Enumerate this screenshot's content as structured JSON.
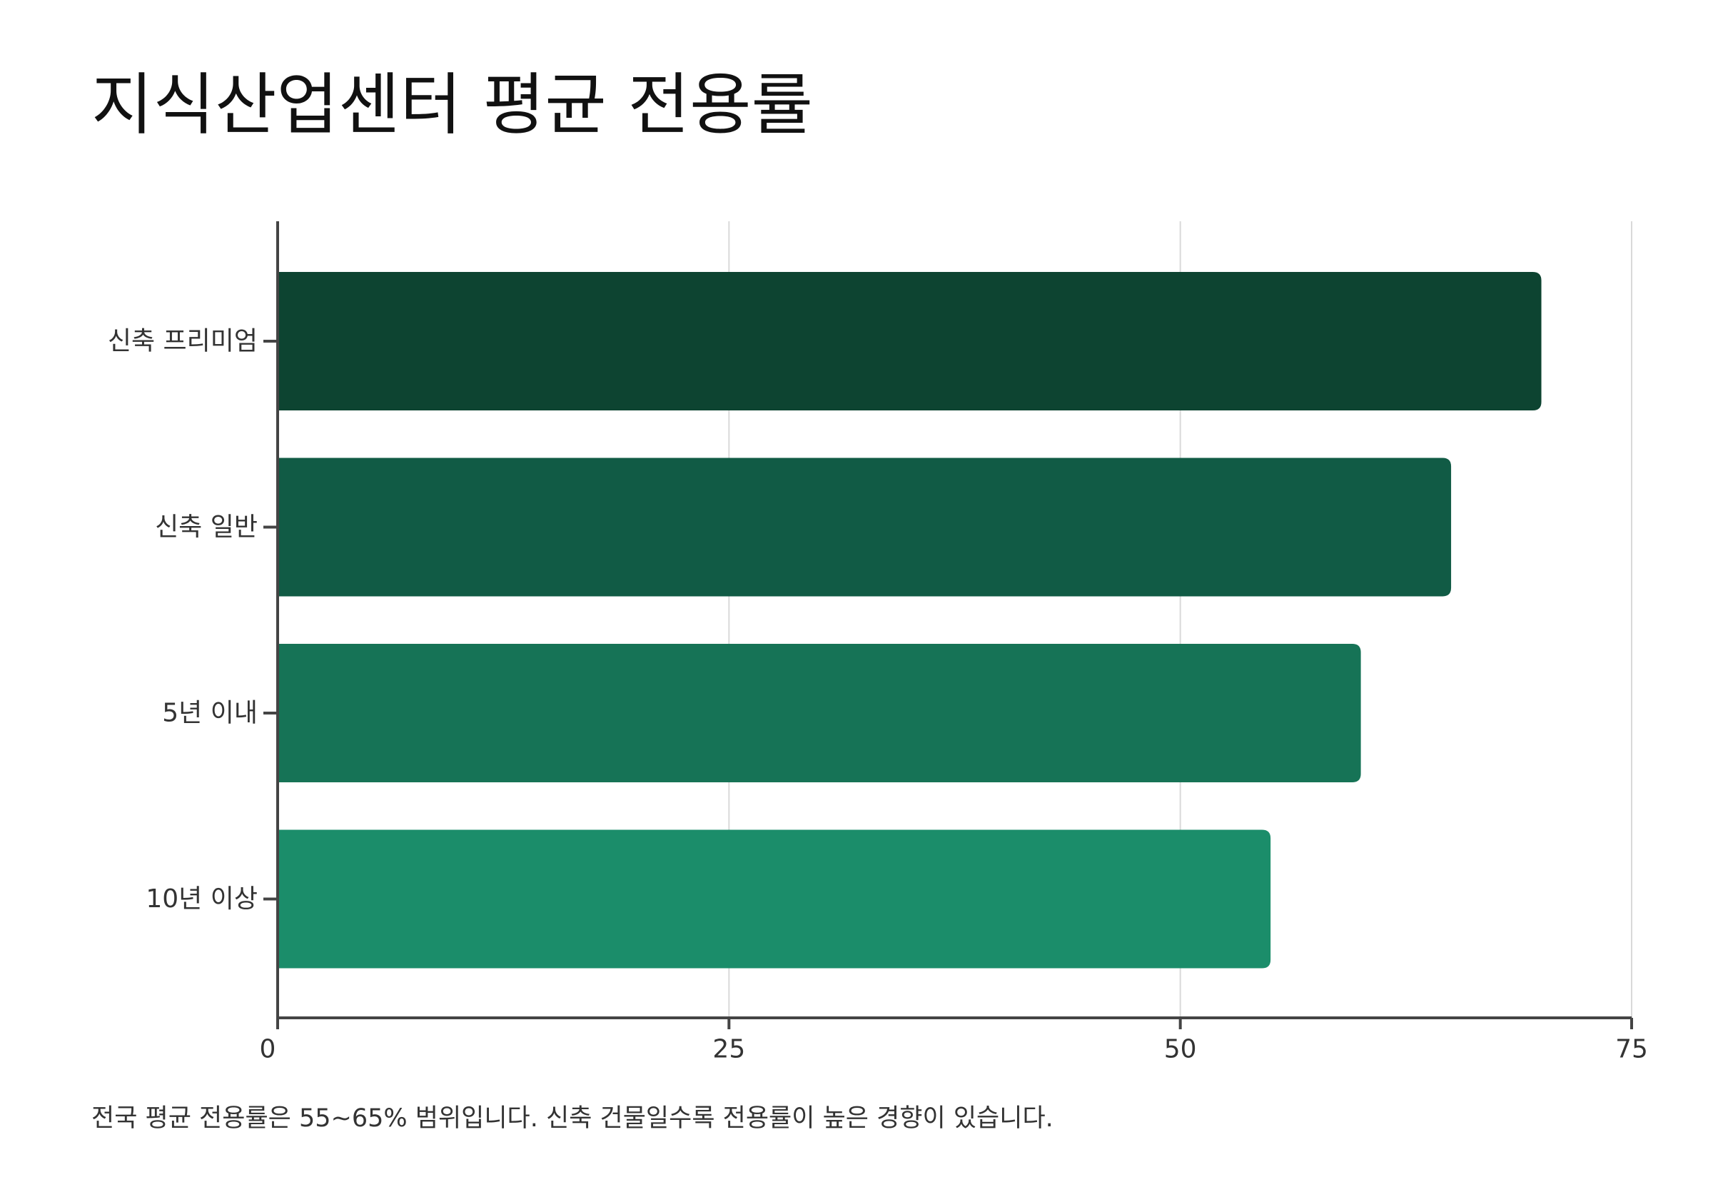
{
  "chart_data": {
    "type": "bar",
    "orientation": "horizontal",
    "title": "지식산업센터 평균 전용률",
    "categories": [
      "신축 프리미엄",
      "신축 일반",
      "5년 이내",
      "10년 이상"
    ],
    "values": [
      70,
      65,
      60,
      55
    ],
    "colors": [
      "#0d4431",
      "#115b45",
      "#167356",
      "#1b8d6a"
    ],
    "xlim": [
      0,
      75
    ],
    "xticks": [
      0,
      25,
      50,
      75
    ],
    "xlabel": "",
    "ylabel": "",
    "grid": "vertical"
  },
  "note": "전국 평균 전용률은 55~65% 범위입니다. 신축 건물일수록 전용률이 높은 경향이 있습니다."
}
